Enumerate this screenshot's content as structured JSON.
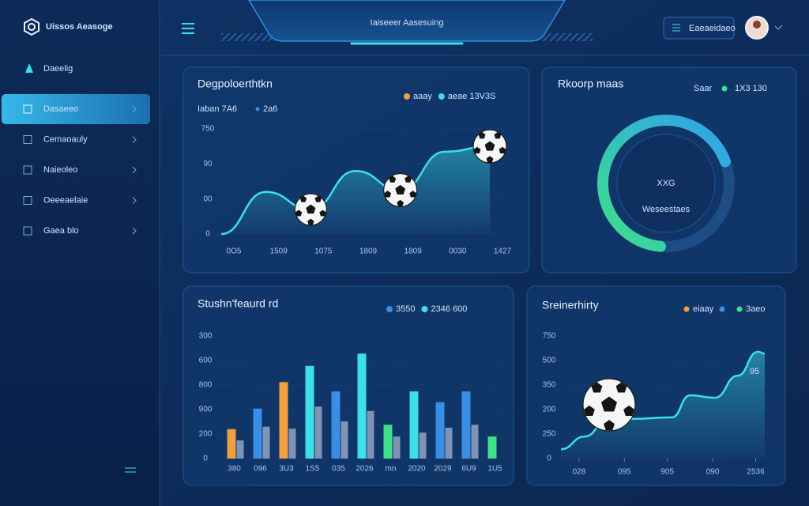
{
  "header": {
    "brand": "Uissos Aeasoge",
    "title": "Iaiseeer Aasesuing",
    "button": "Eaeaeidaeo"
  },
  "sidebar": {
    "top": "Daeelig",
    "items": [
      "Dasaeeo",
      "Cemaoauly",
      "Naieoleo",
      "Oeeeaelaie",
      "Gaea blo"
    ]
  },
  "panels": [
    {
      "type": "line",
      "title": "Degpoloerthtkn",
      "subtitle": [
        "Iaban 7A6",
        "2a6"
      ],
      "legend": [
        {
          "label": "aaay",
          "color": "#f0a040"
        },
        {
          "label": "aeae 13V3S",
          "color": "#3de0e8"
        }
      ],
      "categories": [
        "0O5",
        "1509",
        "1075",
        "1809",
        "1809",
        "0030",
        "1427"
      ],
      "values": [
        0,
        120,
        70,
        180,
        125,
        235,
        250
      ],
      "color": "#3de0e8",
      "ylim": [
        0,
        300
      ],
      "yticks": [
        0,
        {
          "value": 100,
          "label": "00"
        },
        {
          "value": 200,
          "label": "90"
        },
        {
          "value": 300,
          "label": "750"
        }
      ]
    },
    {
      "type": "gauge",
      "title": "Rkoorp maas",
      "legend": [
        {
          "label": "Saar",
          "color": "#3ee08a"
        },
        {
          "label": "1X3 130",
          "color": null
        }
      ],
      "center": "XXG",
      "caption": "Weseestaes",
      "value": 68,
      "range": [
        0,
        100
      ],
      "colors": [
        "#3ee08a",
        "#2fa0f0"
      ]
    },
    {
      "type": "bar",
      "title": "Stushn'feaurd rd",
      "legend": [
        {
          "label": "3550",
          "color": "#3a8ee6"
        },
        {
          "label": "2346 600",
          "color": "#3de0e8"
        }
      ],
      "categories": [
        "380",
        "096",
        "3U3",
        "1S5",
        "035",
        "2026",
        "mn",
        "2020",
        "2029",
        "6U9",
        "1U5"
      ],
      "series": [
        {
          "values": [
            60,
            102,
            156,
            189,
            137,
            214,
            69,
            137,
            115,
            137,
            45
          ],
          "colors": [
            "#f0a040",
            "#3a8ee6",
            "#f0a040",
            "#3de0e8",
            "#3a8ee6",
            "#3de0e8",
            "#3ee08a",
            "#3de0e8",
            "#3a8ee6",
            "#3a8ee6",
            "#3ee08a"
          ]
        },
        {
          "values": [
            37,
            65,
            61,
            106,
            76,
            97,
            45,
            53,
            63,
            69,
            null
          ],
          "color": "#7f93b5"
        }
      ],
      "ylim": [
        0,
        250
      ],
      "yticks": [
        0,
        {
          "value": 50,
          "label": "200"
        },
        {
          "value": 100,
          "label": "900"
        },
        {
          "value": 150,
          "label": "800"
        },
        {
          "value": 200,
          "label": "600"
        },
        {
          "value": 250,
          "label": "300"
        }
      ]
    },
    {
      "type": "area",
      "title": "Sreinerhirty",
      "legend": [
        {
          "label": "eiaay",
          "color": "#f0a040"
        },
        {
          "label": "3aeo",
          "color": "#3ee08a"
        }
      ],
      "annotation": "95",
      "x": [
        0,
        1.05,
        2.1,
        3.1,
        4.9,
        5.7,
        6.8,
        7.8,
        8.7,
        9
      ],
      "values": [
        19,
        45,
        81,
        81,
        84,
        129,
        124,
        169,
        218,
        214
      ],
      "color": "#3de0e8",
      "xlim": [
        0,
        9
      ],
      "xticks": [
        {
          "value": 0.8,
          "label": "028"
        },
        {
          "value": 2.8,
          "label": "095"
        },
        {
          "value": 4.7,
          "label": "905"
        },
        {
          "value": 6.7,
          "label": "090"
        },
        {
          "value": 8.6,
          "label": "2536"
        }
      ],
      "ylim": [
        0,
        250
      ],
      "yticks": [
        0,
        {
          "value": 50,
          "label": "250"
        },
        {
          "value": 100,
          "label": "200"
        },
        {
          "value": 150,
          "label": "350"
        },
        {
          "value": 200,
          "label": "500"
        },
        {
          "value": 250,
          "label": "750"
        }
      ]
    }
  ]
}
